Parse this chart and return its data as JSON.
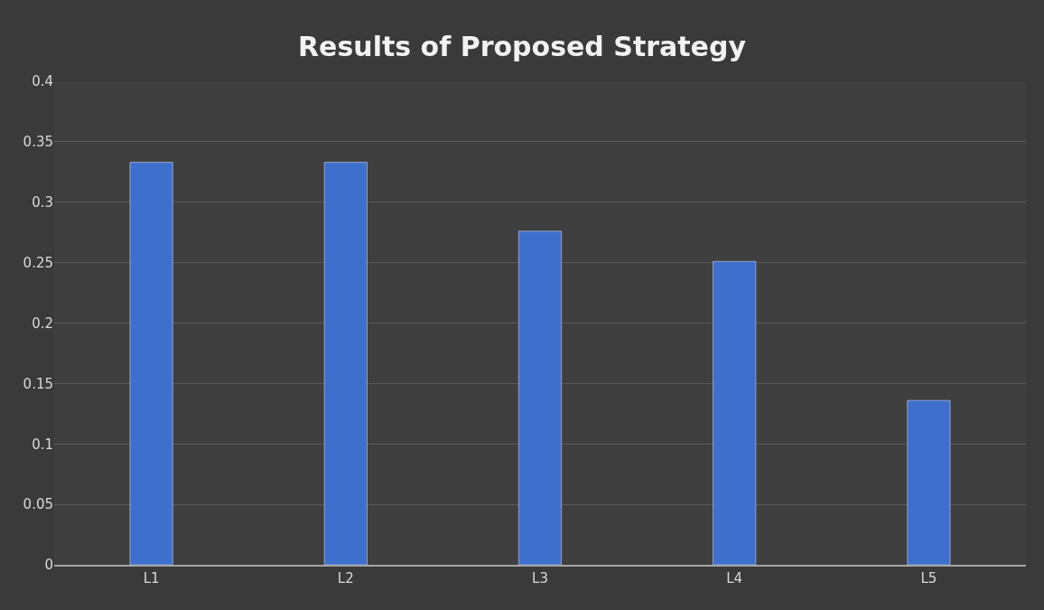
{
  "chart_data": {
    "type": "bar",
    "title": "Results of Proposed Strategy",
    "categories": [
      "L1",
      "L2",
      "L3",
      "L4",
      "L5"
    ],
    "values": [
      0.333,
      0.333,
      0.276,
      0.251,
      0.136
    ],
    "color": "#3f6fcc",
    "ylim": [
      0,
      0.4
    ],
    "yticks": [
      0,
      0.05,
      0.1,
      0.15,
      0.2,
      0.25,
      0.3,
      0.35,
      0.4
    ],
    "grid": "y"
  }
}
